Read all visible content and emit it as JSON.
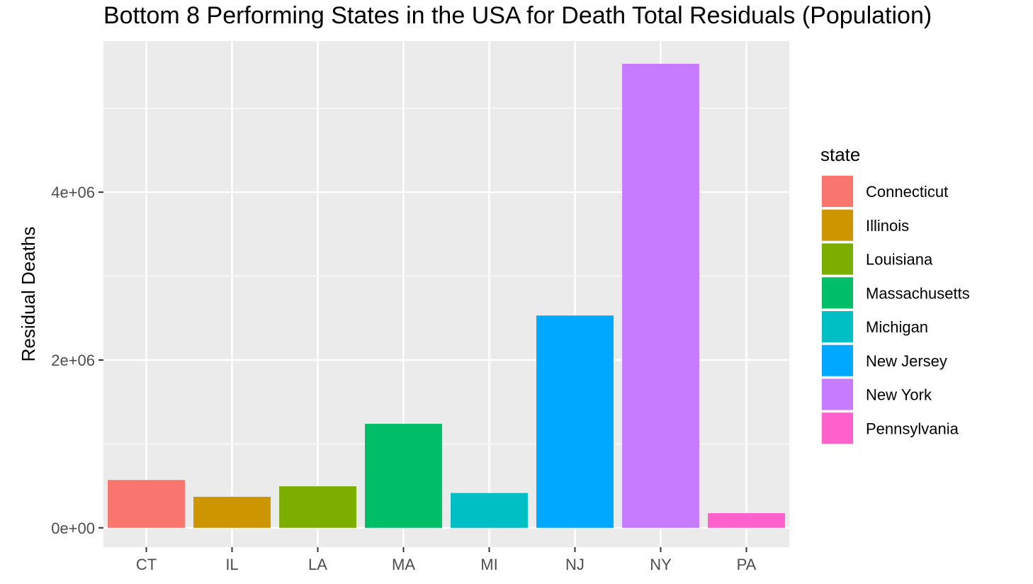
{
  "chart_data": {
    "type": "bar",
    "title": "Bottom 8 Performing States in the USA for Death Total Residuals (Population)",
    "xlabel": "",
    "ylabel": "Residual Deaths",
    "categories": [
      "CT",
      "IL",
      "LA",
      "MA",
      "MI",
      "NJ",
      "NY",
      "PA"
    ],
    "values": [
      570000,
      370000,
      495000,
      1240000,
      415000,
      2530000,
      5530000,
      175000
    ],
    "ylim": [
      -230000,
      5800000
    ],
    "y_ticks": [
      0,
      2000000,
      4000000
    ],
    "y_tick_labels": [
      "0e+00",
      "2e+06",
      "4e+06"
    ],
    "grid": true,
    "legend": {
      "title": "state",
      "position": "right",
      "entries": [
        {
          "label": "Connecticut",
          "color": "#F8766D"
        },
        {
          "label": "Illinois",
          "color": "#CD9600"
        },
        {
          "label": "Louisiana",
          "color": "#7CAE00"
        },
        {
          "label": "Massachusetts",
          "color": "#00BE67"
        },
        {
          "label": "Michigan",
          "color": "#00BFC4"
        },
        {
          "label": "New Jersey",
          "color": "#00A9FF"
        },
        {
          "label": "New York",
          "color": "#C77CFF"
        },
        {
          "label": "Pennsylvania",
          "color": "#FF61CC"
        }
      ]
    },
    "colors": [
      "#F8766D",
      "#CD9600",
      "#7CAE00",
      "#00BE67",
      "#00BFC4",
      "#00A9FF",
      "#C77CFF",
      "#FF61CC"
    ],
    "panel_background": "#EBEBEB"
  }
}
